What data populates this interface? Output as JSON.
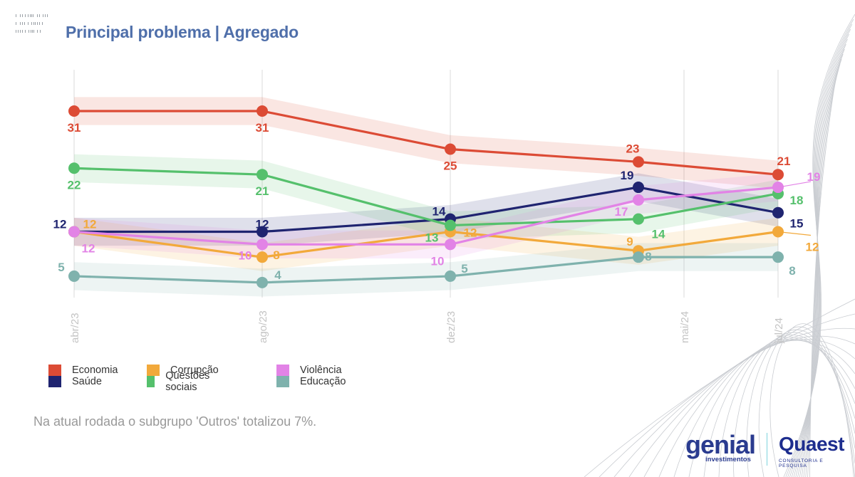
{
  "page": {
    "title": "Principal problema | Agregado",
    "note": "Na atual rodada o subgrupo 'Outros' totalizou 7%.",
    "logos": {
      "genial_name": "genial",
      "genial_sub": "investimentos",
      "quaest_name": "Quaest",
      "quaest_sub": "CONSULTORIA E PESQUISA"
    }
  },
  "chart_data": {
    "type": "line",
    "title": "Principal problema | Agregado",
    "xlabel": "",
    "ylabel": "",
    "x_ticks": [
      "abr/23",
      "ago/23",
      "dez/23",
      "mai/24",
      "jul/24"
    ],
    "ylim": [
      4,
      31
    ],
    "grid": "vertical",
    "legend_position": "bottom-left",
    "series": [
      {
        "name": "Economia",
        "color": "#dc4b35",
        "values": [
          31,
          31,
          25,
          23,
          21
        ]
      },
      {
        "name": "Saúde",
        "color": "#1f2470",
        "values": [
          12,
          12,
          14,
          19,
          15
        ]
      },
      {
        "name": "Corrupção",
        "color": "#f2a93b",
        "values": [
          12,
          8,
          12,
          9,
          12
        ]
      },
      {
        "name": "Questões sociais",
        "color": "#55c06c",
        "values": [
          22,
          21,
          13,
          14,
          18
        ]
      },
      {
        "name": "Violência",
        "color": "#e283e6",
        "values": [
          12,
          10,
          10,
          17,
          19
        ]
      },
      {
        "name": "Educação",
        "color": "#7fb2ad",
        "values": [
          5,
          4,
          5,
          8,
          8
        ]
      }
    ]
  }
}
